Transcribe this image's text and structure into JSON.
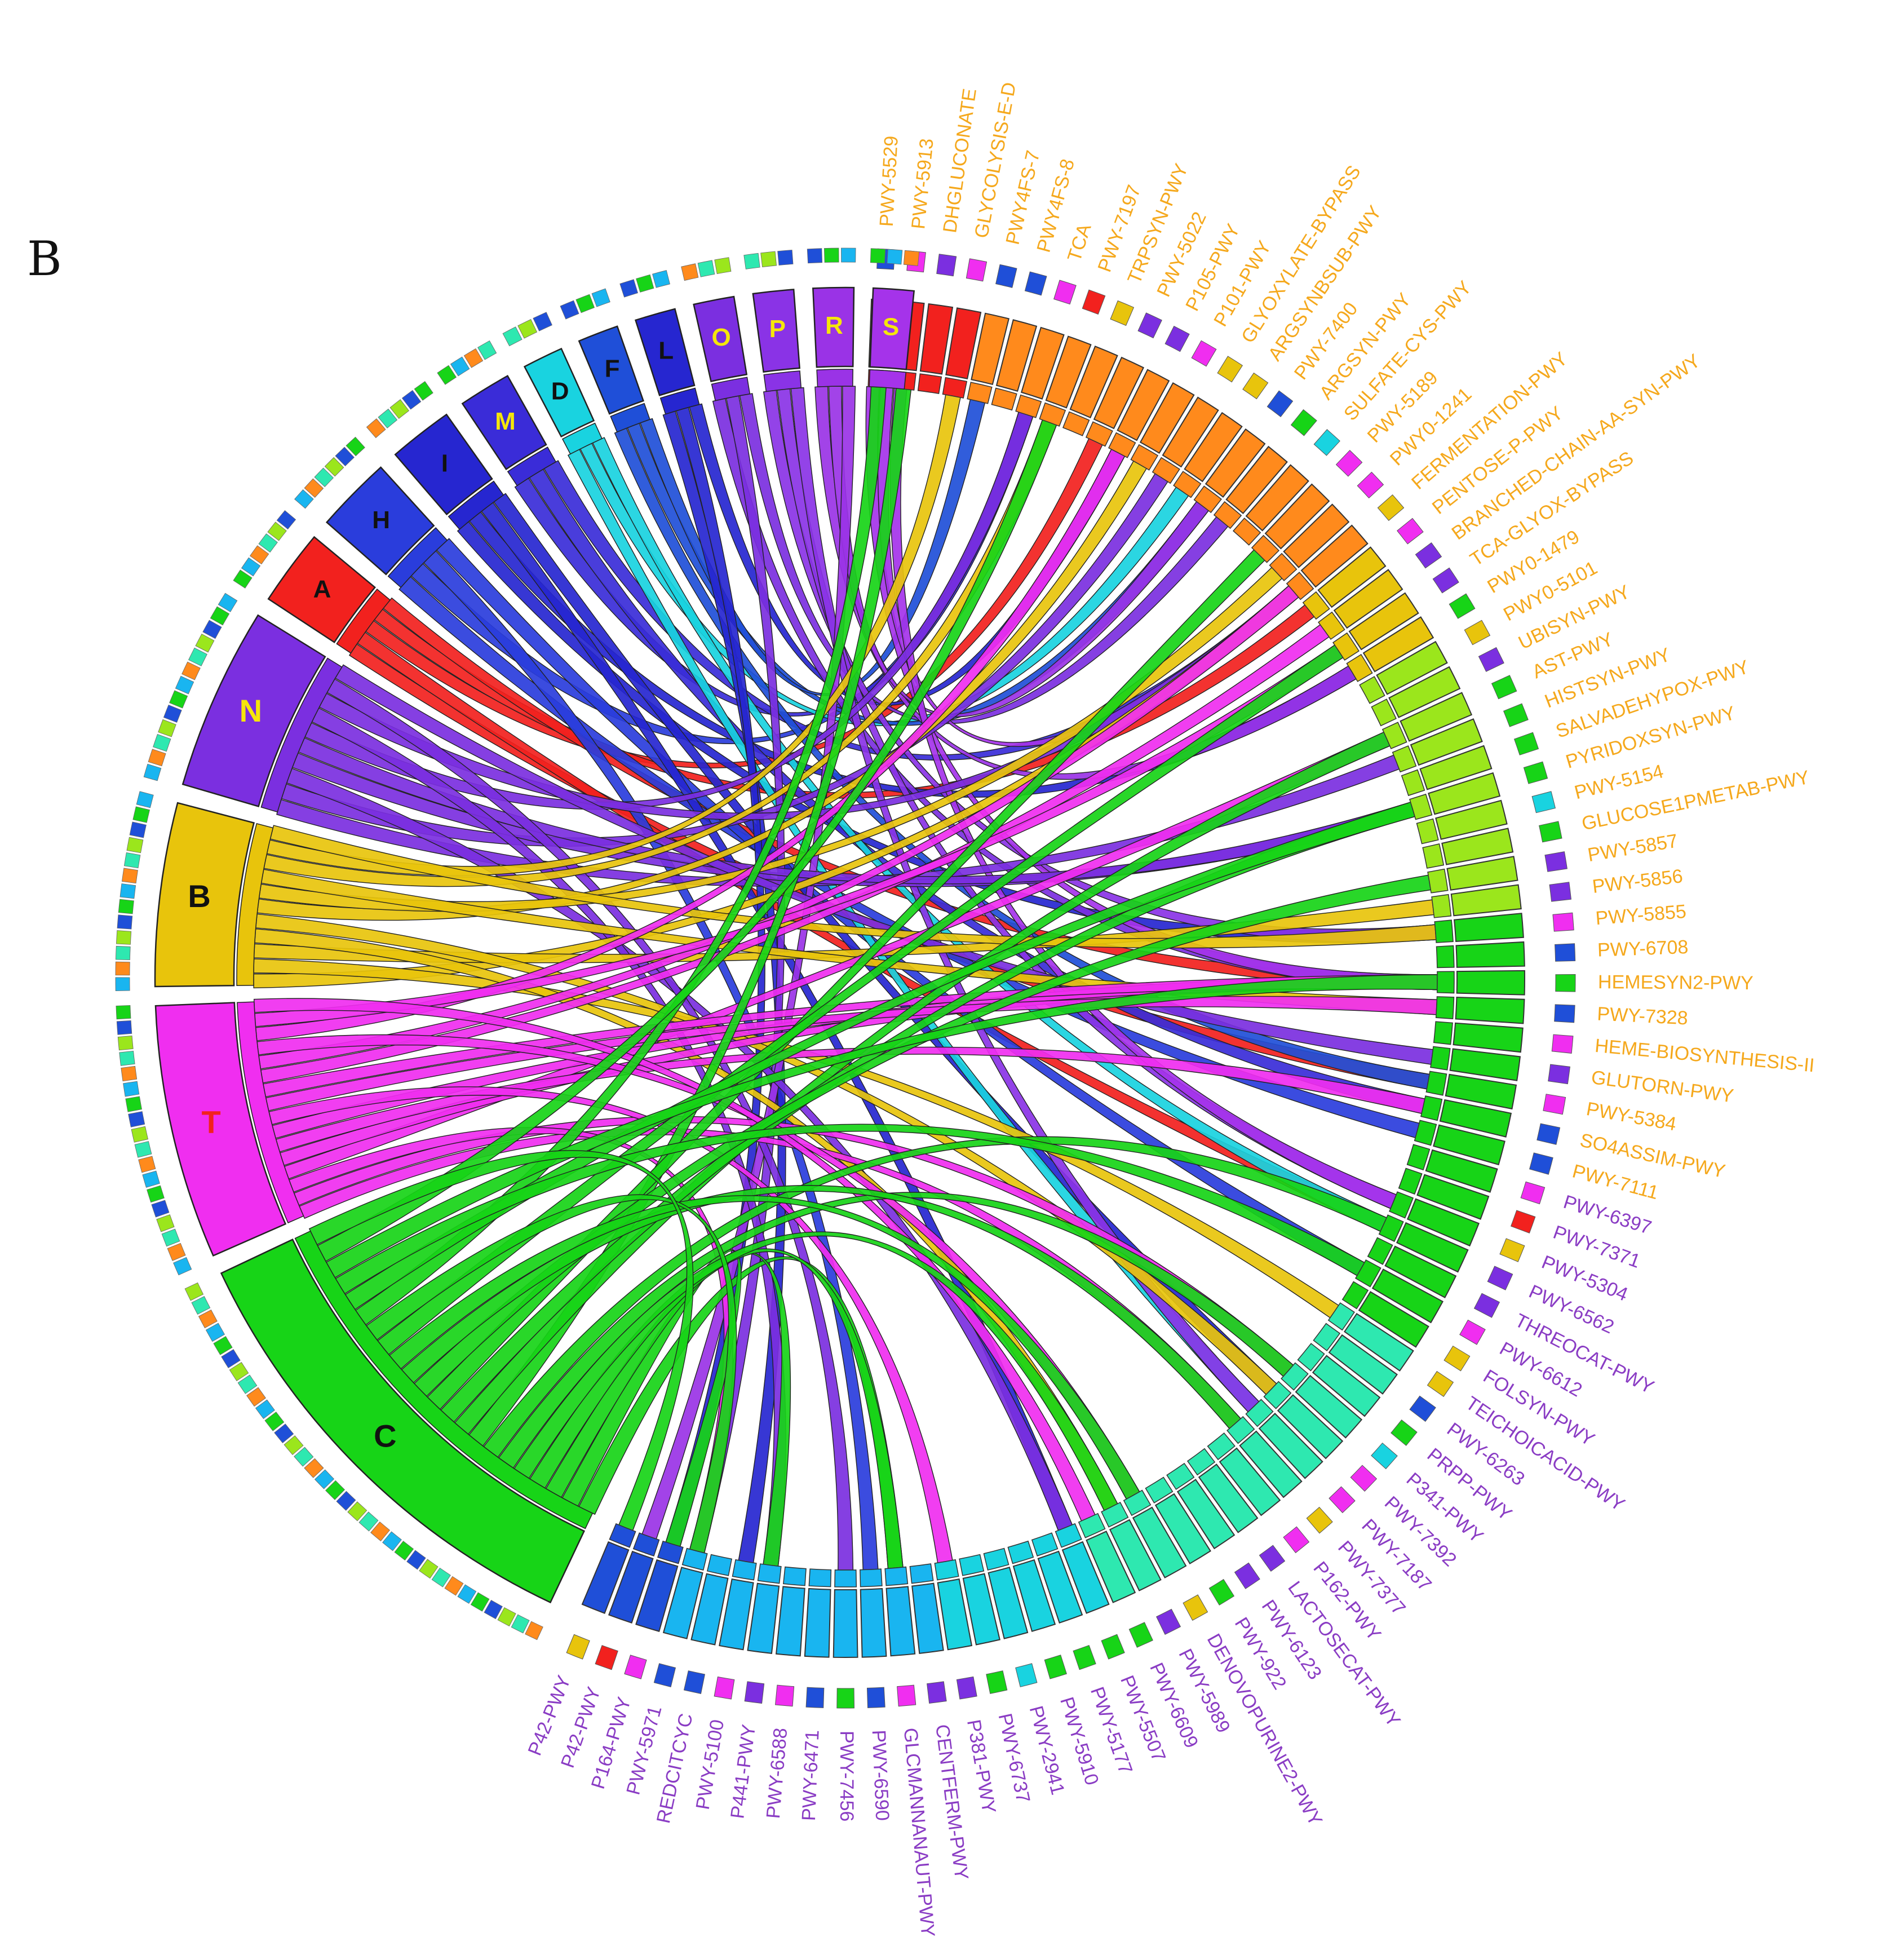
{
  "figure": {
    "panel_label": "B"
  },
  "colors": {
    "orange_label": "#f5a81c",
    "purple_label": "#8a3cc4",
    "red": "#f2211e",
    "blue_dark": "#2626d0",
    "blue": "#1f4fd8",
    "cyan": "#19d3e0",
    "violet": "#7b2fe0",
    "purple": "#9a33e6",
    "magenta": "#f02ef0",
    "gold": "#e8c40c",
    "green": "#17d417",
    "lime": "#9be61c",
    "orange": "#ff8a1c",
    "teal": "#2ee8b0",
    "sky": "#19b5f0"
  },
  "groups": [
    {
      "code": "A",
      "label_color": "#111111",
      "fill": "#f2211e"
    },
    {
      "code": "H",
      "label_color": "#111111",
      "fill": "#2a3ddc"
    },
    {
      "code": "I",
      "label_color": "#111111",
      "fill": "#2626d0"
    },
    {
      "code": "M",
      "label_color": "#f5e60a",
      "fill": "#3a2cd8"
    },
    {
      "code": "D",
      "label_color": "#111111",
      "fill": "#19d3e0"
    },
    {
      "code": "F",
      "label_color": "#111111",
      "fill": "#1f4fd8"
    },
    {
      "code": "L",
      "label_color": "#111111",
      "fill": "#2626d0"
    },
    {
      "code": "O",
      "label_color": "#f5e60a",
      "fill": "#7b2fe0"
    },
    {
      "code": "P",
      "label_color": "#f5e60a",
      "fill": "#8a33e6"
    },
    {
      "code": "R",
      "label_color": "#f5e60a",
      "fill": "#9a33e6"
    },
    {
      "code": "S",
      "label_color": "#f5e60a",
      "fill": "#a533ea"
    },
    {
      "code": "N",
      "label_color": "#f5e60a",
      "fill": "#7b2fe0"
    },
    {
      "code": "B",
      "label_color": "#111111",
      "fill": "#e8c40c"
    },
    {
      "code": "T",
      "label_color": "#f2211e",
      "fill": "#f02ef0"
    },
    {
      "code": "C",
      "label_color": "#111111",
      "fill": "#17d417"
    }
  ],
  "pathways_orange": [
    "PWY-5529",
    "PWY-5913",
    "DHGLUCONATE",
    "GLYCOLYSIS-E-D",
    "PWY4FS-7",
    "PWY4FS-8",
    "TCA",
    "PWY-7197",
    "TRPSYN-PWY",
    "PWY-5022",
    "P105-PWY",
    "P101-PWY",
    "GLYOXYLATE-BYPASS",
    "ARGSYNBSUB-PWY",
    "PWY-7400",
    "ARGSYN-PWY",
    "SULFATE-CYS-PWY",
    "PWY-5189",
    "PWY0-1241",
    "FERMENTATION-PWY",
    "PENTOSE-P-PWY",
    "BRANCHED-CHAIN-AA-SYN-PWY",
    "TCA-GLYOX-BYPASS",
    "PWY0-1479",
    "PWY0-5101",
    "UBISYN-PWY",
    "AST-PWY",
    "HISTSYN-PWY",
    "SALVADEHYPOX-PWY",
    "PYRIDOXSYN-PWY",
    "PWY-5154",
    "GLUCOSE1PMETAB-PWY",
    "PWY-5857",
    "PWY-5856",
    "PWY-5855",
    "PWY-6708",
    "HEMESYN2-PWY",
    "PWY-7328",
    "HEME-BIOSYNTHESIS-II",
    "GLUTORN-PWY",
    "PWY-5384",
    "SO4ASSIM-PWY",
    "PWY-7111"
  ],
  "pathways_purple": [
    "PWY-6397",
    "PWY-7371",
    "PWY-5304",
    "PWY-6562",
    "THREOCAT-PWY",
    "PWY-6612",
    "FOLSYN-PWY",
    "TEICHOICACID-PWY",
    "PWY-6263",
    "PRPP-PWY",
    "P341-PWY",
    "PWY-7392",
    "PWY-7187",
    "PWY-7377",
    "P162-PWY",
    "LACTOSECAT-PWY",
    "PWY-6123",
    "PWY-922",
    "DENOVOPURINE2-PWY",
    "PWY-5989",
    "PWY-6609",
    "PWY-5507",
    "PWY-5177",
    "PWY-5910",
    "PWY-2941",
    "PWY-6737",
    "P381-PWY",
    "CENTFERM-PWY",
    "GLCMANNANAUT-PWY",
    "PWY-6590",
    "PWY-7456",
    "PWY-6471",
    "PWY-6588",
    "P441-PWY",
    "PWY-5100",
    "REDCITCYC",
    "PWY-5971",
    "P164-PWY",
    "P42-PWY",
    "P42-PWY"
  ]
}
